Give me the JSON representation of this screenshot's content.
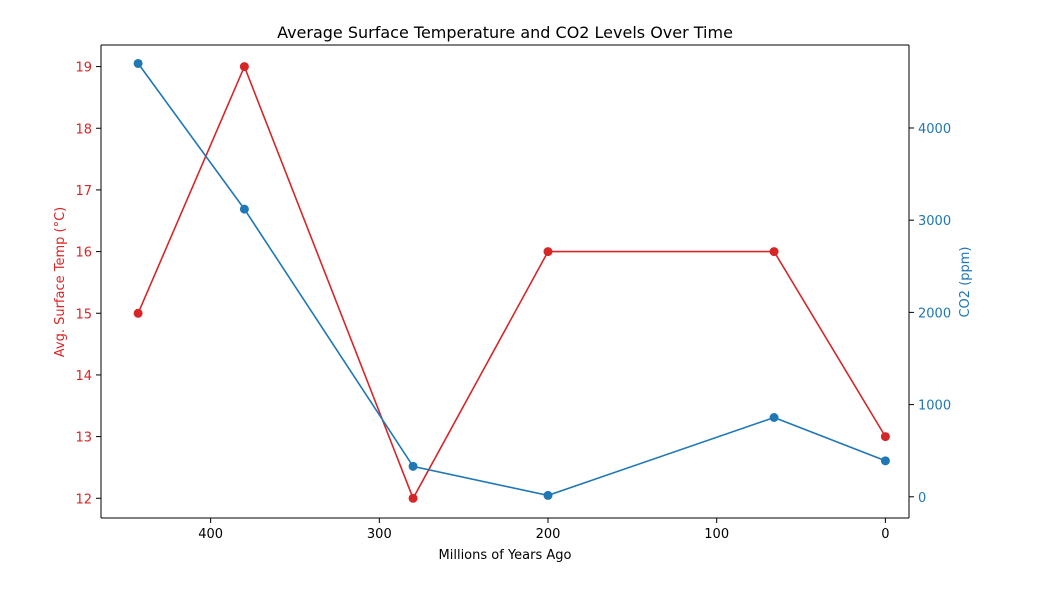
{
  "chart_data": {
    "type": "line",
    "title": "Average Surface Temperature and CO2 Levels Over Time",
    "xlabel": "Millions of Years Ago",
    "ylabel_left": "Avg. Surface Temp (°C)",
    "ylabel_right": "CO2 (ppm)",
    "x_inverted": true,
    "xlim": [
      465,
      -14
    ],
    "ylim_left": [
      11.68,
      19.35
    ],
    "ylim_right": [
      -230,
      4900
    ],
    "x_ticks": [
      400,
      300,
      200,
      100,
      0
    ],
    "y_ticks_left": [
      12,
      13,
      14,
      15,
      16,
      17,
      18,
      19
    ],
    "y_ticks_right": [
      0,
      1000,
      2000,
      3000,
      4000
    ],
    "grid": false,
    "x": [
      443,
      380,
      280,
      200,
      66,
      0
    ],
    "series": [
      {
        "name": "Avg. Surface Temp (°C)",
        "axis": "left",
        "color": "#d62728",
        "values": [
          15,
          19,
          12,
          16,
          16,
          13
        ]
      },
      {
        "name": "CO2 (ppm)",
        "axis": "right",
        "color": "#1f77b4",
        "values": [
          4700,
          3120,
          330,
          15,
          860,
          390
        ]
      }
    ]
  }
}
